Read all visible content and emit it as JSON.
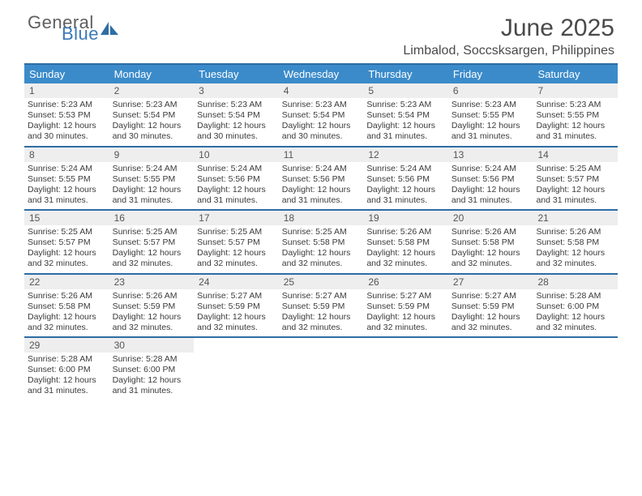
{
  "brand": {
    "text1": "General",
    "text2": "Blue",
    "icon_color": "#2e6da4"
  },
  "title": "June 2025",
  "location": "Limbalod, Soccsksargen, Philippines",
  "colors": {
    "header_bg": "#3b8bca",
    "header_text": "#ffffff",
    "border": "#2e6da4",
    "date_bg": "#eeeeee",
    "body_text": "#3b3b3b"
  },
  "fonts": {
    "title_size": 30,
    "location_size": 16,
    "header_size": 13,
    "date_size": 12,
    "body_size": 10.5
  },
  "day_headers": [
    "Sunday",
    "Monday",
    "Tuesday",
    "Wednesday",
    "Thursday",
    "Friday",
    "Saturday"
  ],
  "weeks": [
    [
      {
        "date": "1",
        "sunrise": "Sunrise: 5:23 AM",
        "sunset": "Sunset: 5:53 PM",
        "daylight": "Daylight: 12 hours and 30 minutes."
      },
      {
        "date": "2",
        "sunrise": "Sunrise: 5:23 AM",
        "sunset": "Sunset: 5:54 PM",
        "daylight": "Daylight: 12 hours and 30 minutes."
      },
      {
        "date": "3",
        "sunrise": "Sunrise: 5:23 AM",
        "sunset": "Sunset: 5:54 PM",
        "daylight": "Daylight: 12 hours and 30 minutes."
      },
      {
        "date": "4",
        "sunrise": "Sunrise: 5:23 AM",
        "sunset": "Sunset: 5:54 PM",
        "daylight": "Daylight: 12 hours and 30 minutes."
      },
      {
        "date": "5",
        "sunrise": "Sunrise: 5:23 AM",
        "sunset": "Sunset: 5:54 PM",
        "daylight": "Daylight: 12 hours and 31 minutes."
      },
      {
        "date": "6",
        "sunrise": "Sunrise: 5:23 AM",
        "sunset": "Sunset: 5:55 PM",
        "daylight": "Daylight: 12 hours and 31 minutes."
      },
      {
        "date": "7",
        "sunrise": "Sunrise: 5:23 AM",
        "sunset": "Sunset: 5:55 PM",
        "daylight": "Daylight: 12 hours and 31 minutes."
      }
    ],
    [
      {
        "date": "8",
        "sunrise": "Sunrise: 5:24 AM",
        "sunset": "Sunset: 5:55 PM",
        "daylight": "Daylight: 12 hours and 31 minutes."
      },
      {
        "date": "9",
        "sunrise": "Sunrise: 5:24 AM",
        "sunset": "Sunset: 5:55 PM",
        "daylight": "Daylight: 12 hours and 31 minutes."
      },
      {
        "date": "10",
        "sunrise": "Sunrise: 5:24 AM",
        "sunset": "Sunset: 5:56 PM",
        "daylight": "Daylight: 12 hours and 31 minutes."
      },
      {
        "date": "11",
        "sunrise": "Sunrise: 5:24 AM",
        "sunset": "Sunset: 5:56 PM",
        "daylight": "Daylight: 12 hours and 31 minutes."
      },
      {
        "date": "12",
        "sunrise": "Sunrise: 5:24 AM",
        "sunset": "Sunset: 5:56 PM",
        "daylight": "Daylight: 12 hours and 31 minutes."
      },
      {
        "date": "13",
        "sunrise": "Sunrise: 5:24 AM",
        "sunset": "Sunset: 5:56 PM",
        "daylight": "Daylight: 12 hours and 31 minutes."
      },
      {
        "date": "14",
        "sunrise": "Sunrise: 5:25 AM",
        "sunset": "Sunset: 5:57 PM",
        "daylight": "Daylight: 12 hours and 31 minutes."
      }
    ],
    [
      {
        "date": "15",
        "sunrise": "Sunrise: 5:25 AM",
        "sunset": "Sunset: 5:57 PM",
        "daylight": "Daylight: 12 hours and 32 minutes."
      },
      {
        "date": "16",
        "sunrise": "Sunrise: 5:25 AM",
        "sunset": "Sunset: 5:57 PM",
        "daylight": "Daylight: 12 hours and 32 minutes."
      },
      {
        "date": "17",
        "sunrise": "Sunrise: 5:25 AM",
        "sunset": "Sunset: 5:57 PM",
        "daylight": "Daylight: 12 hours and 32 minutes."
      },
      {
        "date": "18",
        "sunrise": "Sunrise: 5:25 AM",
        "sunset": "Sunset: 5:58 PM",
        "daylight": "Daylight: 12 hours and 32 minutes."
      },
      {
        "date": "19",
        "sunrise": "Sunrise: 5:26 AM",
        "sunset": "Sunset: 5:58 PM",
        "daylight": "Daylight: 12 hours and 32 minutes."
      },
      {
        "date": "20",
        "sunrise": "Sunrise: 5:26 AM",
        "sunset": "Sunset: 5:58 PM",
        "daylight": "Daylight: 12 hours and 32 minutes."
      },
      {
        "date": "21",
        "sunrise": "Sunrise: 5:26 AM",
        "sunset": "Sunset: 5:58 PM",
        "daylight": "Daylight: 12 hours and 32 minutes."
      }
    ],
    [
      {
        "date": "22",
        "sunrise": "Sunrise: 5:26 AM",
        "sunset": "Sunset: 5:58 PM",
        "daylight": "Daylight: 12 hours and 32 minutes."
      },
      {
        "date": "23",
        "sunrise": "Sunrise: 5:26 AM",
        "sunset": "Sunset: 5:59 PM",
        "daylight": "Daylight: 12 hours and 32 minutes."
      },
      {
        "date": "24",
        "sunrise": "Sunrise: 5:27 AM",
        "sunset": "Sunset: 5:59 PM",
        "daylight": "Daylight: 12 hours and 32 minutes."
      },
      {
        "date": "25",
        "sunrise": "Sunrise: 5:27 AM",
        "sunset": "Sunset: 5:59 PM",
        "daylight": "Daylight: 12 hours and 32 minutes."
      },
      {
        "date": "26",
        "sunrise": "Sunrise: 5:27 AM",
        "sunset": "Sunset: 5:59 PM",
        "daylight": "Daylight: 12 hours and 32 minutes."
      },
      {
        "date": "27",
        "sunrise": "Sunrise: 5:27 AM",
        "sunset": "Sunset: 5:59 PM",
        "daylight": "Daylight: 12 hours and 32 minutes."
      },
      {
        "date": "28",
        "sunrise": "Sunrise: 5:28 AM",
        "sunset": "Sunset: 6:00 PM",
        "daylight": "Daylight: 12 hours and 32 minutes."
      }
    ],
    [
      {
        "date": "29",
        "sunrise": "Sunrise: 5:28 AM",
        "sunset": "Sunset: 6:00 PM",
        "daylight": "Daylight: 12 hours and 31 minutes."
      },
      {
        "date": "30",
        "sunrise": "Sunrise: 5:28 AM",
        "sunset": "Sunset: 6:00 PM",
        "daylight": "Daylight: 12 hours and 31 minutes."
      },
      {
        "date": "",
        "sunrise": "",
        "sunset": "",
        "daylight": "",
        "empty": true
      },
      {
        "date": "",
        "sunrise": "",
        "sunset": "",
        "daylight": "",
        "empty": true
      },
      {
        "date": "",
        "sunrise": "",
        "sunset": "",
        "daylight": "",
        "empty": true
      },
      {
        "date": "",
        "sunrise": "",
        "sunset": "",
        "daylight": "",
        "empty": true
      },
      {
        "date": "",
        "sunrise": "",
        "sunset": "",
        "daylight": "",
        "empty": true
      }
    ]
  ]
}
